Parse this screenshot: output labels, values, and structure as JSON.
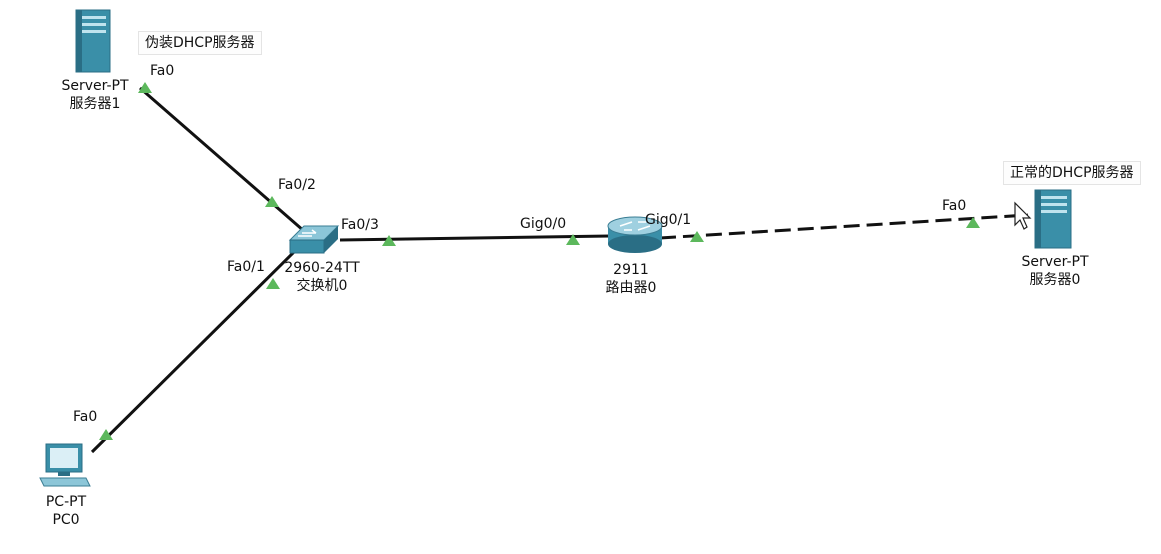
{
  "devices": {
    "server1": {
      "model": "Server-PT",
      "name": "服务器1",
      "note": "伪装DHCP服务器",
      "port": "Fa0"
    },
    "server0": {
      "model": "Server-PT",
      "name": "服务器0",
      "note": "正常的DHCP服务器",
      "port": "Fa0"
    },
    "switch0": {
      "model": "2960-24TT",
      "name": "交换机0",
      "port_server": "Fa0/2",
      "port_pc": "Fa0/1",
      "port_router": "Fa0/3"
    },
    "router0": {
      "model": "2911",
      "name": "路由器0",
      "port_switch": "Gig0/0",
      "port_server": "Gig0/1"
    },
    "pc0": {
      "model": "PC-PT",
      "name": "PC0",
      "port": "Fa0"
    }
  },
  "colors": {
    "link": "#111111",
    "port_up": "#5cb85c",
    "device_teal": "#3a8fa8",
    "device_teal_dark": "#2a6e85"
  }
}
